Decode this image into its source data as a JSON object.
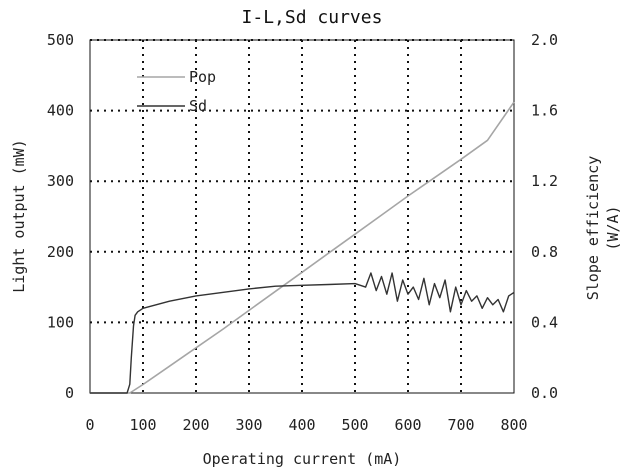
{
  "chart_data": {
    "type": "line",
    "title": "I-L,Sd curves",
    "xlabel": "Operating current (mA)",
    "ylabel": "Light output (mW)",
    "y2label_line1": "Slope efficiency",
    "y2label_line2": "(W/A)",
    "xlim": [
      0,
      800
    ],
    "ylim": [
      0,
      500
    ],
    "y2lim": [
      0.0,
      2.0
    ],
    "x_ticks": [
      "0",
      "100",
      "200",
      "300",
      "400",
      "500",
      "600",
      "700",
      "800"
    ],
    "y_ticks": [
      "0",
      "100",
      "200",
      "300",
      "400",
      "500"
    ],
    "y2_ticks": [
      "0.0",
      "0.4",
      "0.8",
      "1.2",
      "1.6",
      "2.0"
    ],
    "grid": "dotted",
    "legend_position": "top-left",
    "series": [
      {
        "name": "Pop",
        "axis": "left",
        "color": "#a6a6a6",
        "x": [
          0,
          75,
          100,
          150,
          200,
          250,
          300,
          350,
          400,
          450,
          500,
          550,
          600,
          650,
          700,
          750,
          800
        ],
        "y": [
          0,
          0,
          12,
          38,
          64,
          90,
          117,
          144,
          171,
          198,
          225,
          252,
          279,
          305,
          331,
          358,
          412
        ]
      },
      {
        "name": "Sd",
        "axis": "right",
        "color": "#333333",
        "x": [
          0,
          70,
          75,
          78,
          82,
          85,
          90,
          100,
          150,
          200,
          250,
          300,
          350,
          400,
          450,
          500,
          520,
          530,
          540,
          550,
          560,
          570,
          580,
          590,
          600,
          610,
          620,
          630,
          640,
          650,
          660,
          670,
          680,
          690,
          700,
          710,
          720,
          730,
          740,
          750,
          760,
          770,
          780,
          790,
          800
        ],
        "y": [
          0,
          0,
          0.05,
          0.2,
          0.38,
          0.44,
          0.46,
          0.48,
          0.52,
          0.55,
          0.57,
          0.59,
          0.605,
          0.61,
          0.615,
          0.62,
          0.6,
          0.68,
          0.58,
          0.66,
          0.56,
          0.68,
          0.52,
          0.64,
          0.56,
          0.6,
          0.53,
          0.65,
          0.5,
          0.62,
          0.54,
          0.64,
          0.46,
          0.6,
          0.5,
          0.58,
          0.52,
          0.55,
          0.48,
          0.54,
          0.5,
          0.53,
          0.46,
          0.55,
          0.57
        ]
      }
    ]
  }
}
